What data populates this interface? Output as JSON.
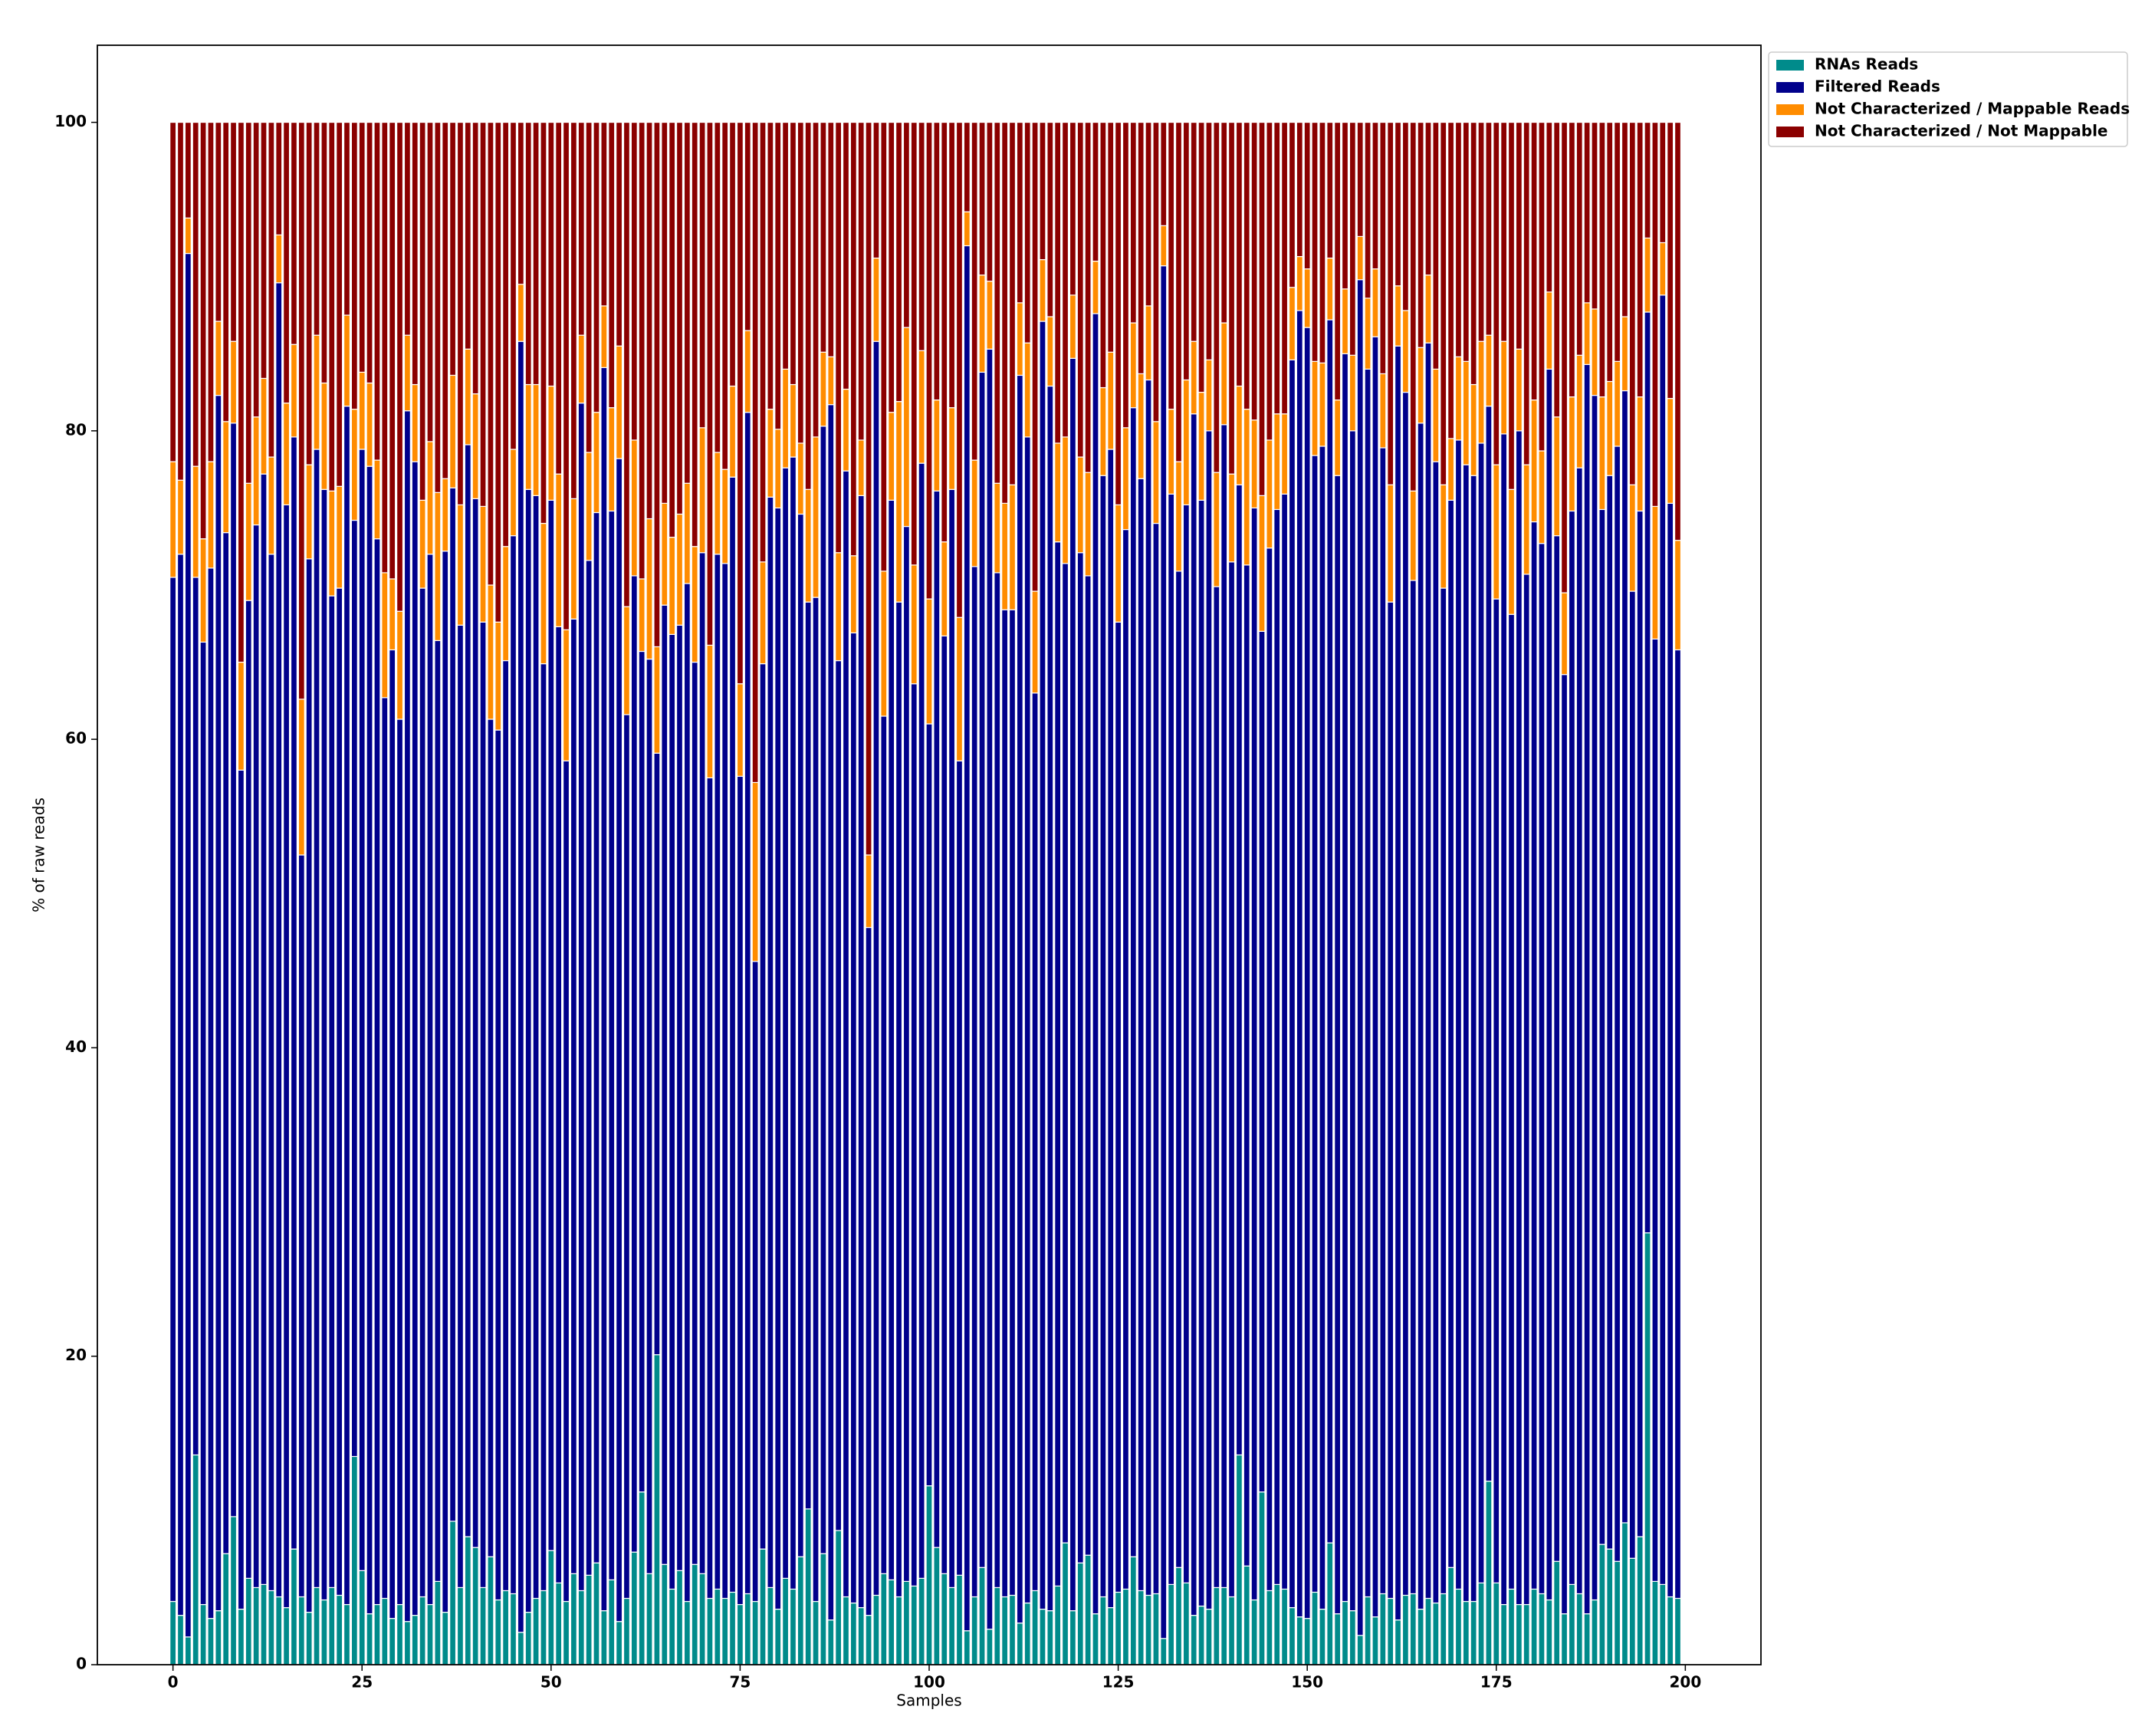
{
  "chart_data": {
    "type": "stacked_bar",
    "xlabel": "Samples",
    "ylabel": "% of raw reads",
    "xlim": [
      -10,
      210
    ],
    "ylim": [
      0,
      105
    ],
    "xticks": [
      0,
      25,
      50,
      75,
      100,
      125,
      150,
      175,
      200
    ],
    "yticks": [
      0,
      20,
      40,
      60,
      80,
      100
    ],
    "legend": "upper left outside",
    "x": [
      0,
      1,
      2,
      3,
      4,
      5,
      6,
      7,
      8,
      9,
      10,
      11,
      12,
      13,
      14,
      15,
      16,
      17,
      18,
      19,
      20,
      21,
      22,
      23,
      24,
      25,
      26,
      27,
      28,
      29,
      30,
      31,
      32,
      33,
      34,
      35,
      36,
      37,
      38,
      39,
      40,
      41,
      42,
      43,
      44,
      45,
      46,
      47,
      48,
      49,
      50,
      51,
      52,
      53,
      54,
      55,
      56,
      57,
      58,
      59,
      60,
      61,
      62,
      63,
      64,
      65,
      66,
      67,
      68,
      69,
      70,
      71,
      72,
      73,
      74,
      75,
      76,
      77,
      78,
      79,
      80,
      81,
      82,
      83,
      84,
      85,
      86,
      87,
      88,
      89,
      90,
      91,
      92,
      93,
      94,
      95,
      96,
      97,
      98,
      99,
      100,
      101,
      102,
      103,
      104,
      105,
      106,
      107,
      108,
      109,
      110,
      111,
      112,
      113,
      114,
      115,
      116,
      117,
      118,
      119,
      120,
      121,
      122,
      123,
      124,
      125,
      126,
      127,
      128,
      129,
      130,
      131,
      132,
      133,
      134,
      135,
      136,
      137,
      138,
      139,
      140,
      141,
      142,
      143,
      144,
      145,
      146,
      147,
      148,
      149,
      150,
      151,
      152,
      153,
      154,
      155,
      156,
      157,
      158,
      159,
      160,
      161,
      162,
      163,
      164,
      165,
      166,
      167,
      168,
      169,
      170,
      171,
      172,
      173,
      174,
      175,
      176,
      177,
      178,
      179,
      180,
      181,
      182,
      183,
      184,
      185,
      186,
      187,
      188,
      189,
      190,
      191,
      192,
      193,
      194,
      195,
      196,
      197,
      198,
      199
    ],
    "series": [
      {
        "name": "RNAs Reads",
        "color": "#008b8b",
        "values": [
          4.1,
          3.2,
          1.8,
          13.6,
          3.9,
          3.0,
          3.5,
          7.2,
          9.6,
          3.6,
          5.6,
          5.0,
          5.2,
          4.8,
          4.4,
          3.7,
          7.5,
          4.4,
          3.4,
          5.0,
          4.2,
          5.0,
          4.5,
          3.9,
          13.5,
          6.1,
          3.3,
          3.9,
          4.3,
          3.0,
          3.9,
          2.8,
          3.2,
          4.4,
          3.9,
          5.4,
          3.4,
          9.3,
          5.0,
          8.3,
          7.6,
          5.0,
          7.0,
          4.2,
          4.8,
          4.6,
          2.1,
          3.4,
          4.3,
          4.8,
          7.4,
          5.3,
          4.1,
          5.9,
          4.8,
          5.8,
          6.6,
          3.5,
          5.5,
          2.8,
          4.3,
          7.3,
          11.2,
          5.9,
          20.1,
          6.5,
          4.9,
          6.1,
          4.1,
          6.5,
          5.9,
          4.3,
          4.9,
          4.3,
          4.7,
          3.9,
          4.6,
          4.1,
          7.5,
          5.0,
          3.6,
          5.6,
          4.9,
          7.0,
          10.1,
          4.1,
          7.2,
          2.9,
          8.7,
          4.4,
          4.0,
          3.7,
          3.2,
          4.5,
          5.9,
          5.5,
          4.4,
          5.4,
          5.1,
          5.6,
          11.6,
          7.6,
          5.9,
          5.0,
          5.8,
          2.2,
          4.4,
          6.3,
          2.3,
          5.0,
          4.4,
          4.5,
          2.7,
          4.0,
          4.8,
          3.6,
          3.5,
          5.1,
          7.9,
          3.5,
          6.6,
          7.1,
          3.3,
          4.4,
          3.7,
          4.7,
          4.9,
          7.0,
          4.8,
          4.5,
          4.6,
          1.7,
          5.2,
          6.3,
          5.3,
          3.2,
          3.8,
          3.6,
          5.0,
          5.0,
          4.4,
          13.6,
          6.4,
          4.2,
          11.2,
          4.8,
          5.2,
          4.9,
          3.7,
          3.1,
          3.0,
          4.7,
          3.6,
          7.9,
          3.3,
          4.1,
          3.5,
          1.9,
          4.4,
          3.1,
          4.6,
          4.3,
          2.9,
          4.5,
          4.6,
          3.6,
          4.3,
          4.0,
          4.6,
          6.3,
          4.9,
          4.1,
          4.1,
          5.3,
          11.9,
          5.3,
          3.9,
          4.9,
          3.9,
          3.9,
          4.9,
          4.6,
          4.2,
          6.7,
          3.3,
          5.2,
          4.6,
          3.3,
          4.2,
          7.8,
          7.5,
          6.7,
          9.2,
          6.9,
          8.3,
          28.0,
          5.4,
          5.2,
          4.4,
          4.3
        ]
      },
      {
        "name": "Filtered Reads",
        "color": "#00008b",
        "values": [
          66.4,
          68.8,
          89.7,
          56.9,
          62.4,
          68.1,
          78.8,
          66.2,
          70.9,
          54.4,
          63.4,
          68.9,
          72.0,
          67.2,
          85.2,
          71.5,
          72.1,
          48.1,
          68.3,
          73.8,
          72.0,
          64.3,
          65.3,
          77.7,
          60.7,
          72.7,
          74.4,
          69.1,
          58.4,
          62.8,
          57.4,
          78.5,
          74.8,
          65.4,
          68.1,
          61.0,
          68.8,
          67.0,
          62.4,
          70.8,
          68.0,
          62.6,
          54.3,
          56.4,
          60.3,
          68.6,
          83.7,
          72.8,
          71.5,
          60.1,
          68.1,
          62.0,
          54.5,
          61.9,
          77.0,
          65.8,
          68.1,
          80.6,
          69.3,
          75.4,
          57.3,
          63.3,
          54.5,
          59.3,
          39.0,
          62.2,
          61.9,
          61.3,
          66.0,
          58.5,
          66.2,
          53.2,
          67.1,
          67.1,
          72.3,
          53.7,
          76.6,
          41.5,
          57.4,
          70.7,
          71.4,
          72.0,
          73.4,
          67.6,
          58.8,
          65.1,
          73.1,
          78.8,
          56.4,
          73.0,
          62.9,
          72.1,
          44.6,
          81.3,
          55.6,
          70.0,
          64.5,
          68.4,
          58.5,
          72.3,
          49.4,
          68.5,
          60.8,
          71.2,
          52.8,
          89.8,
          66.8,
          77.5,
          83.0,
          65.8,
          64.0,
          63.9,
          80.9,
          75.6,
          58.2,
          83.5,
          79.4,
          67.7,
          63.5,
          81.2,
          65.5,
          63.5,
          84.3,
          72.7,
          75.1,
          62.9,
          68.7,
          74.5,
          72.1,
          78.8,
          69.4,
          89.0,
          70.7,
          64.6,
          69.9,
          77.9,
          71.7,
          76.4,
          64.9,
          75.4,
          67.1,
          62.9,
          64.9,
          70.8,
          55.8,
          67.6,
          69.7,
          71.0,
          80.9,
          84.7,
          83.7,
          73.7,
          75.4,
          79.3,
          73.8,
          80.9,
          76.5,
          87.9,
          79.6,
          83.0,
          74.3,
          64.6,
          82.6,
          78.0,
          65.7,
          76.9,
          81.4,
          74.0,
          65.2,
          69.2,
          74.5,
          73.7,
          73.0,
          73.9,
          69.7,
          63.8,
          75.9,
          63.2,
          76.1,
          66.8,
          69.2,
          68.1,
          79.8,
          66.5,
          60.9,
          69.6,
          73.0,
          81.0,
          78.1,
          67.1,
          69.6,
          72.3,
          73.4,
          62.7,
          66.5,
          59.7,
          61.1,
          83.6,
          70.9,
          61.5
        ]
      },
      {
        "name": "Not Characterized / Mappable Reads",
        "color": "#ff8c00",
        "values": [
          7.5,
          4.8,
          2.3,
          7.2,
          6.7,
          6.9,
          4.8,
          7.2,
          5.3,
          7.0,
          7.6,
          7.0,
          6.2,
          6.3,
          3.1,
          6.6,
          6.0,
          10.1,
          6.1,
          7.4,
          6.9,
          6.8,
          6.6,
          5.9,
          7.2,
          5.0,
          5.4,
          5.1,
          8.1,
          4.6,
          7.0,
          4.9,
          5.0,
          5.7,
          7.3,
          9.6,
          4.7,
          7.3,
          7.8,
          6.2,
          6.8,
          7.5,
          8.7,
          7.0,
          7.4,
          5.6,
          3.7,
          6.8,
          7.2,
          9.1,
          7.4,
          9.9,
          8.5,
          7.8,
          4.4,
          7.0,
          6.5,
          4.0,
          6.7,
          7.3,
          7.0,
          8.8,
          4.7,
          9.1,
          6.9,
          6.6,
          6.3,
          7.2,
          6.5,
          7.5,
          8.1,
          8.6,
          6.6,
          6.1,
          5.9,
          6.0,
          5.3,
          11.6,
          6.6,
          5.7,
          5.1,
          6.4,
          4.7,
          4.6,
          7.3,
          10.4,
          4.8,
          3.1,
          7.0,
          5.3,
          5.0,
          3.6,
          4.7,
          5.4,
          9.4,
          5.7,
          13.0,
          12.9,
          7.7,
          7.3,
          8.1,
          5.9,
          6.1,
          5.3,
          9.3,
          2.2,
          6.9,
          6.3,
          4.4,
          5.8,
          6.9,
          8.1,
          4.7,
          6.1,
          6.6,
          4.0,
          4.5,
          6.4,
          8.2,
          4.1,
          6.2,
          6.7,
          3.4,
          5.7,
          6.3,
          7.6,
          6.6,
          5.5,
          6.8,
          4.8,
          6.6,
          2.6,
          5.5,
          7.1,
          8.1,
          4.7,
          7.0,
          4.6,
          7.4,
          6.6,
          5.7,
          6.4,
          10.1,
          5.7,
          8.8,
          7.0,
          6.2,
          5.2,
          4.7,
          3.5,
          3.8,
          6.1,
          5.4,
          4.0,
          4.9,
          4.2,
          4.9,
          2.8,
          4.6,
          4.4,
          4.8,
          7.6,
          3.9,
          5.3,
          5.8,
          4.9,
          4.4,
          6.0,
          6.7,
          4.0,
          5.4,
          6.7,
          5.9,
          6.6,
          4.6,
          8.7,
          6.0,
          8.1,
          5.3,
          7.1,
          7.9,
          6.0,
          5.0,
          7.7,
          5.3,
          7.4,
          7.3,
          4.0,
          5.6,
          7.3,
          6.1,
          5.5,
          4.8,
          6.9,
          7.4,
          4.8,
          8.6,
          3.4,
          6.8,
          7.1
        ]
      },
      {
        "name": "Not Characterized / Not Mappable",
        "color": "#8b0000",
        "values": [
          22.0,
          23.2,
          6.2,
          22.3,
          27.0,
          22.0,
          12.9,
          19.4,
          14.2,
          35.0,
          23.4,
          19.1,
          16.6,
          21.7,
          7.3,
          18.2,
          14.4,
          37.4,
          22.2,
          13.8,
          16.9,
          23.9,
          23.6,
          12.5,
          18.6,
          16.2,
          16.9,
          21.9,
          29.2,
          29.6,
          31.7,
          13.8,
          17.0,
          24.5,
          20.7,
          24.0,
          23.1,
          16.4,
          24.8,
          14.7,
          17.6,
          24.9,
          30.0,
          32.4,
          27.5,
          21.2,
          10.5,
          17.0,
          17.0,
          26.0,
          17.1,
          22.8,
          32.9,
          24.4,
          13.8,
          21.4,
          18.8,
          11.9,
          18.5,
          14.5,
          31.4,
          20.6,
          29.6,
          25.7,
          34.0,
          24.7,
          26.9,
          25.4,
          23.4,
          27.5,
          19.8,
          33.9,
          21.4,
          22.5,
          17.1,
          36.4,
          13.5,
          42.8,
          28.5,
          18.6,
          19.9,
          16.0,
          17.0,
          20.8,
          23.8,
          20.4,
          14.9,
          15.2,
          27.9,
          17.3,
          28.1,
          20.6,
          47.5,
          8.8,
          29.1,
          18.8,
          18.1,
          13.3,
          28.7,
          14.8,
          30.9,
          18.0,
          27.2,
          18.5,
          32.1,
          5.8,
          21.9,
          9.9,
          10.3,
          23.4,
          24.7,
          23.5,
          11.7,
          14.3,
          30.4,
          8.9,
          12.6,
          20.8,
          20.4,
          11.2,
          21.7,
          22.7,
          9.0,
          17.2,
          14.9,
          24.8,
          19.8,
          13.0,
          16.3,
          11.9,
          19.4,
          6.7,
          18.6,
          22.0,
          16.7,
          14.2,
          17.5,
          15.4,
          22.7,
          13.0,
          22.8,
          17.1,
          18.6,
          19.3,
          24.2,
          20.6,
          18.9,
          18.9,
          10.7,
          8.7,
          9.5,
          15.5,
          15.6,
          8.8,
          18.0,
          10.8,
          15.1,
          7.4,
          11.4,
          9.5,
          16.3,
          23.5,
          10.6,
          12.2,
          23.9,
          14.6,
          9.9,
          16.0,
          23.5,
          20.5,
          15.2,
          15.5,
          17.0,
          14.2,
          13.8,
          22.2,
          14.2,
          23.8,
          14.7,
          22.2,
          18.0,
          21.3,
          11.0,
          19.1,
          30.5,
          17.8,
          15.1,
          11.7,
          12.1,
          17.8,
          16.8,
          15.5,
          12.6,
          23.5,
          17.8,
          7.5,
          24.9,
          7.8,
          17.9,
          27.1
        ]
      }
    ]
  }
}
